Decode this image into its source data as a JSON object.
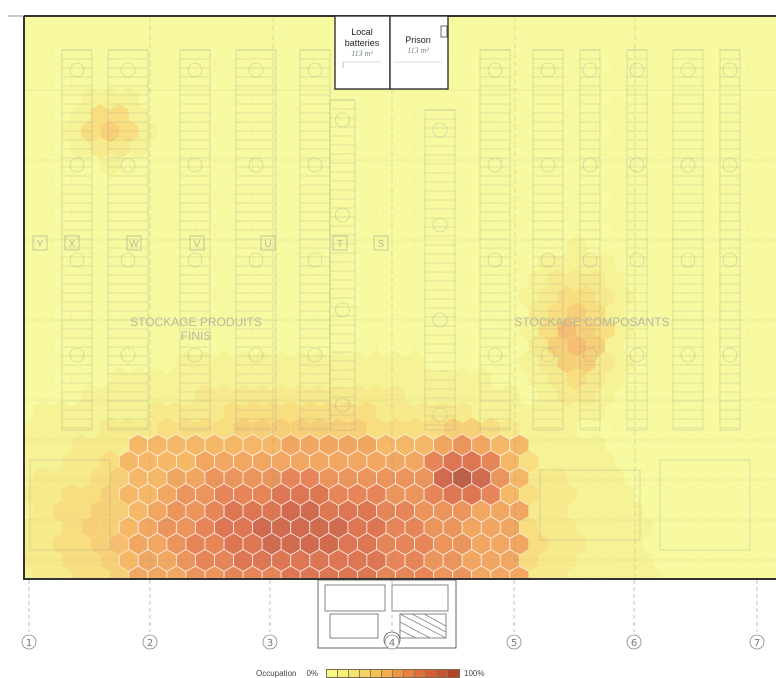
{
  "rooms": [
    {
      "id": "local-batteries",
      "label_lines": [
        "Local",
        "batteries"
      ],
      "area": "113 m²"
    },
    {
      "id": "prison",
      "label_lines": [
        "Prison"
      ],
      "area": "113 m²"
    }
  ],
  "zones": [
    {
      "id": "finished-products",
      "label_lines": [
        "STOCKAGE PRODUITS",
        "FINIS"
      ]
    },
    {
      "id": "components",
      "label_lines": [
        "STOCKAGE COMPOSANTS"
      ]
    }
  ],
  "aisle_letters": [
    "Y",
    "X",
    "W",
    "V",
    "U",
    "T",
    "S"
  ],
  "grid_axes": [
    "1",
    "2",
    "3",
    "4",
    "5",
    "6",
    "7"
  ],
  "heatmap": {
    "metric": "Occupation",
    "min_label": "0%",
    "max_label": "100%",
    "scale": [
      {
        "min": 0.0,
        "color": "#f6f988"
      },
      {
        "min": 0.08,
        "color": "#f4f07a"
      },
      {
        "min": 0.17,
        "color": "#f4e46b"
      },
      {
        "min": 0.25,
        "color": "#f6d35e"
      },
      {
        "min": 0.33,
        "color": "#f6c153"
      },
      {
        "min": 0.42,
        "color": "#f3ab4b"
      },
      {
        "min": 0.5,
        "color": "#ef9645"
      },
      {
        "min": 0.58,
        "color": "#e88240"
      },
      {
        "min": 0.67,
        "color": "#e0703b"
      },
      {
        "min": 0.75,
        "color": "#d65e35"
      },
      {
        "min": 0.83,
        "color": "#c85130"
      },
      {
        "min": 0.92,
        "color": "#b04428"
      }
    ],
    "hotspots": [
      {
        "id": "main-hotspot",
        "peak": 0.85
      },
      {
        "id": "secondary-hotspot",
        "peak": 0.92
      },
      {
        "id": "upper-left-spot",
        "peak": 0.38
      },
      {
        "id": "components-spot",
        "peak": 0.42
      }
    ]
  }
}
